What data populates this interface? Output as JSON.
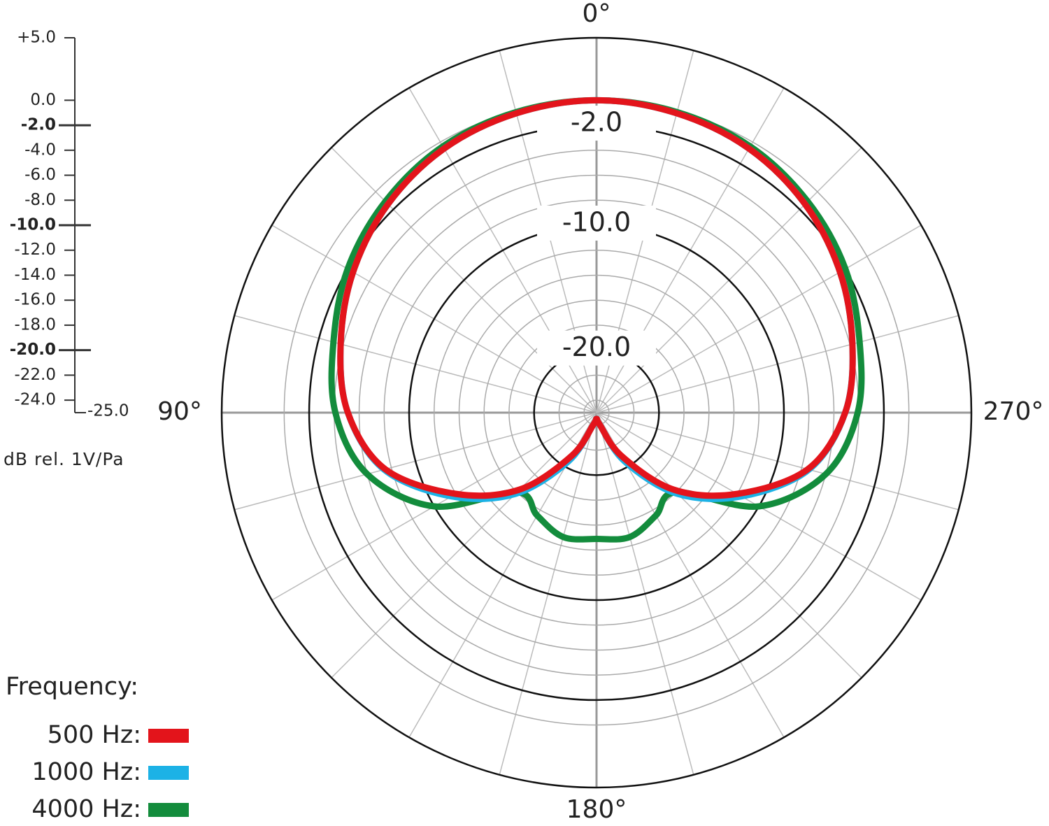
{
  "chart_data": {
    "type": "polar",
    "theta": [
      0,
      15,
      30,
      45,
      60,
      75,
      90,
      105,
      120,
      135,
      150,
      165,
      180,
      195,
      210,
      225,
      240,
      255,
      270,
      285,
      300,
      315,
      330,
      345
    ],
    "angle_labels": [
      {
        "value": 0,
        "label": "0°"
      },
      {
        "value": 90,
        "label": "90°"
      },
      {
        "value": 180,
        "label": "180°"
      },
      {
        "value": 270,
        "label": "270°"
      }
    ],
    "ylim": [
      -25,
      5
    ],
    "yticks": [
      {
        "value": 5,
        "label": "+5.0"
      },
      {
        "value": 0,
        "label": "0.0"
      },
      {
        "value": -2,
        "label": "-2.0"
      },
      {
        "value": -4,
        "label": "-4.0"
      },
      {
        "value": -6,
        "label": "-6.0"
      },
      {
        "value": -8,
        "label": "-8.0"
      },
      {
        "value": -10,
        "label": "-10.0"
      },
      {
        "value": -12,
        "label": "-12.0"
      },
      {
        "value": -14,
        "label": "-14.0"
      },
      {
        "value": -16,
        "label": "-16.0"
      },
      {
        "value": -18,
        "label": "-18.0"
      },
      {
        "value": -20,
        "label": "-20.0"
      },
      {
        "value": -22,
        "label": "-22.0"
      },
      {
        "value": -24,
        "label": "-24.0"
      },
      {
        "value": -25,
        "label": "-25.0"
      }
    ],
    "ring_labels": [
      {
        "value": -2,
        "label": "-2.0"
      },
      {
        "value": -10,
        "label": "-10.0"
      },
      {
        "value": -20,
        "label": "-20.0"
      }
    ],
    "ylabel": "dB rel. 1V/Pa",
    "legend_title": "Frequency:",
    "series": [
      {
        "name": "500 Hz:",
        "color": "#e3141b",
        "values": [
          0,
          -0.2,
          -0.6,
          -1.4,
          -2.5,
          -3.8,
          -5.1,
          -7.5,
          -12,
          -16.3,
          -21,
          -24,
          -24.5,
          -24,
          -21,
          -16.3,
          -12,
          -7.5,
          -5.1,
          -3.8,
          -2.5,
          -1.4,
          -0.6,
          -0.2
        ]
      },
      {
        "name": "1000 Hz:",
        "color": "#1cb2e6",
        "values": [
          0,
          -0.2,
          -0.6,
          -1.4,
          -2.5,
          -3.8,
          -5.1,
          -7.4,
          -11.6,
          -15.8,
          -20.5,
          -24,
          -24.5,
          -24,
          -20.5,
          -15.8,
          -11.6,
          -7.4,
          -5.1,
          -3.8,
          -2.5,
          -1.4,
          -0.6,
          -0.2
        ]
      },
      {
        "name": "4000 Hz:",
        "color": "#138c3c",
        "values": [
          0,
          -0.1,
          -0.4,
          -1.1,
          -2,
          -3.2,
          -4.1,
          -6,
          -10,
          -16,
          -15.5,
          -14.7,
          -14.9,
          -14.7,
          -15.5,
          -16,
          -10,
          -6,
          -4.1,
          -3.2,
          -2,
          -1.1,
          -0.4,
          -0.1
        ]
      }
    ]
  }
}
